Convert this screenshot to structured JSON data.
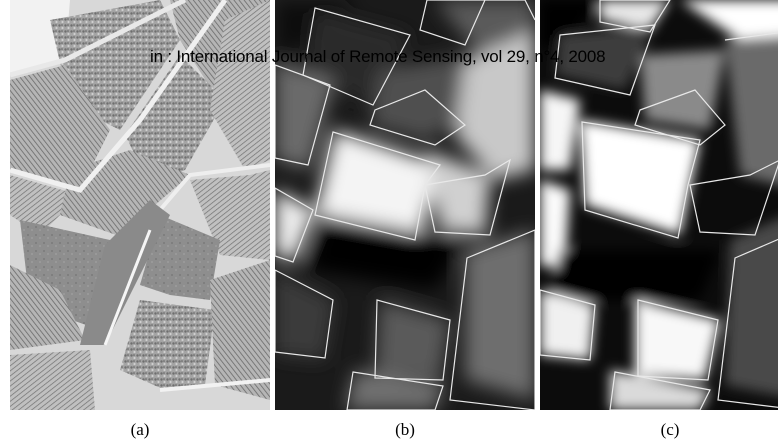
{
  "citation": "in : International Journal of Remote Sensing, vol 29, n°4, 2008",
  "panels": [
    {
      "caption": "(a)"
    },
    {
      "caption": "(b)"
    },
    {
      "caption": "(c)"
    }
  ]
}
